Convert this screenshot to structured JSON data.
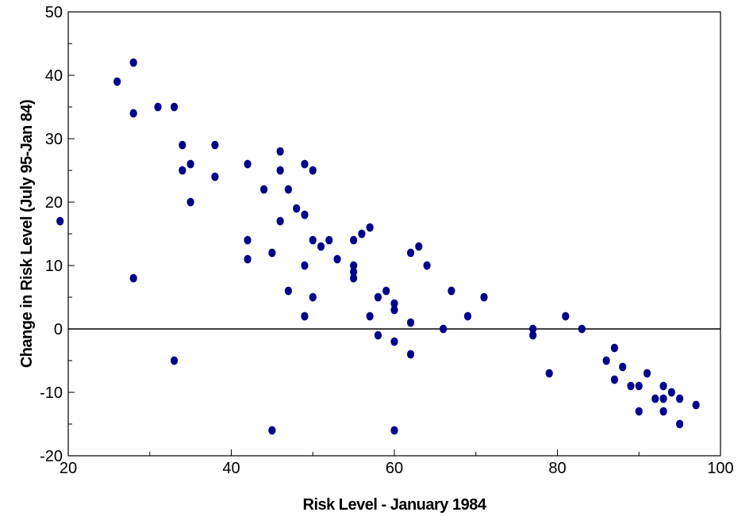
{
  "chart_data": {
    "type": "scatter",
    "title": "",
    "xlabel": "Risk Level - January 1984",
    "ylabel": "Change in Risk Level (July 95-Jan 84)",
    "xlim": [
      20,
      100
    ],
    "ylim": [
      -20,
      50
    ],
    "x_ticks": [
      20,
      40,
      60,
      80,
      100
    ],
    "y_ticks": [
      -20,
      -10,
      0,
      10,
      20,
      30,
      40,
      50
    ],
    "grid": false,
    "reference_line_y": 0,
    "marker_color": "#00008b",
    "points": [
      [
        19,
        17
      ],
      [
        26,
        39
      ],
      [
        28,
        42
      ],
      [
        28,
        34
      ],
      [
        28,
        8
      ],
      [
        31,
        35
      ],
      [
        33,
        35
      ],
      [
        33,
        -5
      ],
      [
        34,
        29
      ],
      [
        34,
        25
      ],
      [
        35,
        26
      ],
      [
        35,
        20
      ],
      [
        38,
        29
      ],
      [
        38,
        24
      ],
      [
        42,
        26
      ],
      [
        42,
        14
      ],
      [
        42,
        11
      ],
      [
        44,
        22
      ],
      [
        45,
        12
      ],
      [
        45,
        -16
      ],
      [
        46,
        28
      ],
      [
        46,
        25
      ],
      [
        46,
        17
      ],
      [
        47,
        22
      ],
      [
        47,
        6
      ],
      [
        48,
        19
      ],
      [
        49,
        26
      ],
      [
        49,
        18
      ],
      [
        49,
        10
      ],
      [
        49,
        2
      ],
      [
        50,
        25
      ],
      [
        50,
        14
      ],
      [
        50,
        5
      ],
      [
        51,
        13
      ],
      [
        52,
        14
      ],
      [
        53,
        11
      ],
      [
        55,
        14
      ],
      [
        55,
        10
      ],
      [
        55,
        9
      ],
      [
        55,
        8
      ],
      [
        56,
        15
      ],
      [
        57,
        16
      ],
      [
        57,
        2
      ],
      [
        58,
        5
      ],
      [
        58,
        -1
      ],
      [
        59,
        6
      ],
      [
        60,
        4
      ],
      [
        60,
        3
      ],
      [
        60,
        -2
      ],
      [
        60,
        -16
      ],
      [
        62,
        12
      ],
      [
        62,
        1
      ],
      [
        62,
        -4
      ],
      [
        63,
        13
      ],
      [
        64,
        10
      ],
      [
        66,
        0
      ],
      [
        67,
        6
      ],
      [
        69,
        2
      ],
      [
        71,
        5
      ],
      [
        77,
        0
      ],
      [
        77,
        -1
      ],
      [
        79,
        -7
      ],
      [
        81,
        2
      ],
      [
        83,
        0
      ],
      [
        86,
        -5
      ],
      [
        87,
        -3
      ],
      [
        87,
        -8
      ],
      [
        88,
        -6
      ],
      [
        89,
        -9
      ],
      [
        90,
        -9
      ],
      [
        90,
        -13
      ],
      [
        91,
        -7
      ],
      [
        92,
        -11
      ],
      [
        93,
        -9
      ],
      [
        93,
        -11
      ],
      [
        93,
        -13
      ],
      [
        94,
        -10
      ],
      [
        95,
        -11
      ],
      [
        95,
        -15
      ],
      [
        97,
        -12
      ]
    ]
  }
}
